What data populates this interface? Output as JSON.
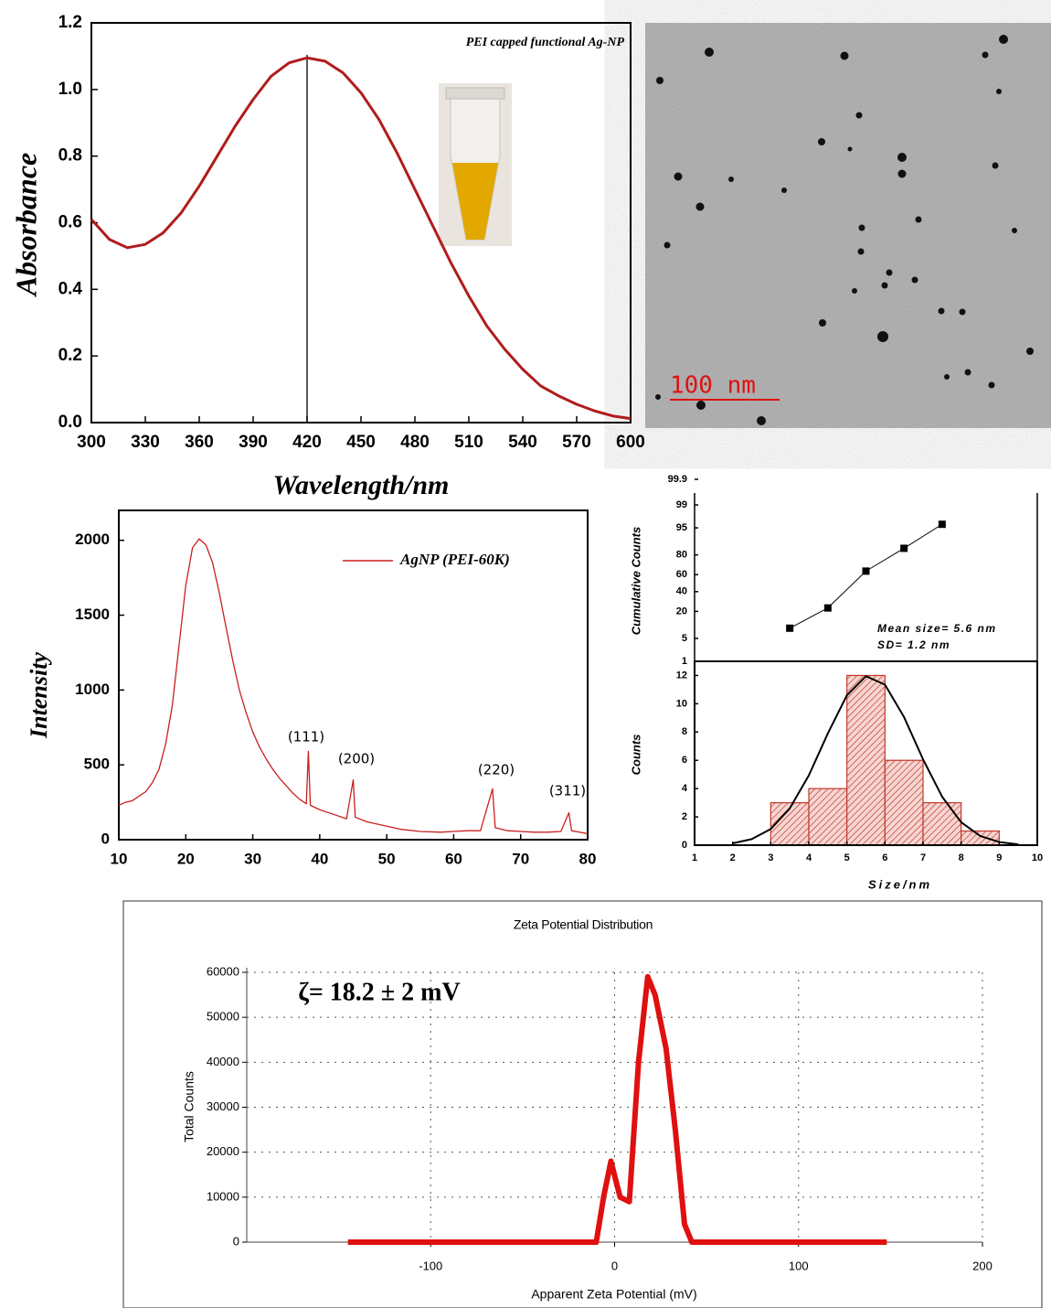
{
  "chart_data": [
    {
      "type": "line",
      "annotation": "PEI capped functional Ag-NP",
      "x_label": "Wavelength/nm",
      "y_label": "Absorbance",
      "color": "#b01c1c",
      "x": [
        300,
        310,
        320,
        330,
        340,
        350,
        360,
        370,
        380,
        390,
        400,
        410,
        420,
        430,
        440,
        450,
        460,
        470,
        480,
        490,
        500,
        510,
        520,
        530,
        540,
        550,
        560,
        570,
        580,
        590,
        600
      ],
      "values": [
        0.61,
        0.55,
        0.525,
        0.535,
        0.57,
        0.63,
        0.71,
        0.8,
        0.89,
        0.97,
        1.04,
        1.08,
        1.095,
        1.085,
        1.05,
        0.99,
        0.91,
        0.81,
        0.7,
        0.59,
        0.48,
        0.38,
        0.29,
        0.22,
        0.16,
        0.11,
        0.08,
        0.055,
        0.035,
        0.02,
        0.012
      ],
      "peak_line_x": 420,
      "xlim": [
        300,
        600
      ],
      "xticks": [
        300,
        330,
        360,
        390,
        420,
        450,
        480,
        510,
        540,
        570,
        600
      ],
      "ylim": [
        0,
        1.2
      ],
      "yticks": [
        {
          "value": 0,
          "label": "0.0"
        },
        0.2,
        0.4,
        0.6,
        0.8,
        {
          "value": 1,
          "label": "1.0"
        },
        1.2
      ]
    },
    {
      "type": "line",
      "y_label": "Intensity",
      "x": [
        10,
        11,
        12,
        13,
        14,
        15,
        16,
        17,
        18,
        19,
        20,
        21,
        22,
        23,
        24,
        25,
        26,
        27,
        28,
        29,
        30,
        31,
        32,
        33,
        34,
        35,
        36,
        37,
        38,
        38.3,
        38.6,
        40,
        42,
        44,
        45,
        45.3,
        47,
        50,
        52,
        55,
        58,
        60,
        62,
        64,
        65.8,
        66.2,
        68,
        70,
        72,
        74,
        76,
        77.2,
        77.6,
        80
      ],
      "series": [
        {
          "name": "AgNP (PEI-60K)",
          "color": "#c8201e",
          "values": [
            230,
            250,
            260,
            290,
            320,
            380,
            470,
            640,
            900,
            1300,
            1700,
            1950,
            2010,
            1970,
            1850,
            1650,
            1420,
            1200,
            1000,
            850,
            720,
            620,
            540,
            470,
            410,
            360,
            310,
            270,
            240,
            590,
            230,
            200,
            170,
            140,
            400,
            150,
            120,
            90,
            70,
            55,
            50,
            55,
            60,
            60,
            340,
            80,
            60,
            55,
            50,
            50,
            55,
            180,
            60,
            40
          ]
        }
      ],
      "annotations": [
        "(111)",
        "(200)",
        "(220)",
        "(311)"
      ],
      "xlim": [
        10,
        80
      ],
      "xticks": [
        10,
        20,
        30,
        40,
        50,
        60,
        70,
        80
      ],
      "ylim": [
        0,
        2200
      ],
      "yticks": [
        0,
        500,
        1000,
        1500,
        2000
      ]
    },
    {
      "type": "scatter",
      "y_label": "Cumulative Counts",
      "annotations": [
        "Mean size= 5.6 nm",
        "SD= 1.2 nm"
      ],
      "x": [
        3.5,
        4.5,
        5.5,
        6.5,
        7.5
      ],
      "values": [
        9,
        23,
        64,
        85,
        96
      ],
      "yscale": "probability",
      "ylim": [
        1,
        99.9
      ],
      "yticks": [
        1,
        5,
        20,
        40,
        60,
        80,
        95,
        99,
        99.9
      ],
      "xlim": [
        1,
        10
      ]
    },
    {
      "type": "histogram",
      "x_label": "Size/nm",
      "y_label": "Counts",
      "color": "#c0392b",
      "bins": [
        3,
        4,
        5,
        6,
        7,
        8,
        9
      ],
      "values": [
        3,
        4,
        12,
        6,
        3,
        1
      ],
      "curve_x": [
        2,
        2.5,
        3,
        3.5,
        4,
        4.5,
        5,
        5.5,
        6,
        6.5,
        7,
        7.5,
        8,
        8.5,
        9,
        9.5
      ],
      "curve_values": [
        0.13,
        0.43,
        1.14,
        2.6,
        4.93,
        7.9,
        10.6,
        11.95,
        11.35,
        9.06,
        6.07,
        3.43,
        1.62,
        0.65,
        0.22,
        0.06
      ],
      "xlim": [
        1,
        10
      ],
      "xticks": [
        1,
        2,
        3,
        4,
        5,
        6,
        7,
        8,
        9,
        10
      ],
      "ylim": [
        0,
        13
      ],
      "yticks": [
        0,
        2,
        4,
        6,
        8,
        10,
        12
      ]
    },
    {
      "type": "line",
      "title": "Zeta Potential Distribution",
      "x_label": "Apparent Zeta Potential (mV)",
      "y_label": "Total Counts",
      "annotation": "ζ= 18.2 ± 2 mV",
      "color": "#e01010",
      "grid": true,
      "x": [
        -145,
        -100,
        -50,
        -10,
        -6,
        -2,
        3,
        8,
        13,
        18,
        22,
        28,
        33,
        38,
        42,
        60,
        100,
        148
      ],
      "values": [
        0,
        0,
        0,
        0,
        10000,
        18000,
        10000,
        9000,
        40000,
        59000,
        55000,
        43000,
        25000,
        4000,
        0,
        0,
        0,
        0
      ],
      "xlim": [
        -200,
        200
      ],
      "xticks": [
        -100,
        0,
        100,
        200
      ],
      "ylim": [
        0,
        60000
      ],
      "yticks": [
        0,
        10000,
        20000,
        30000,
        40000,
        50000,
        60000
      ]
    }
  ],
  "image": {
    "scale_bar": "100 nm"
  }
}
